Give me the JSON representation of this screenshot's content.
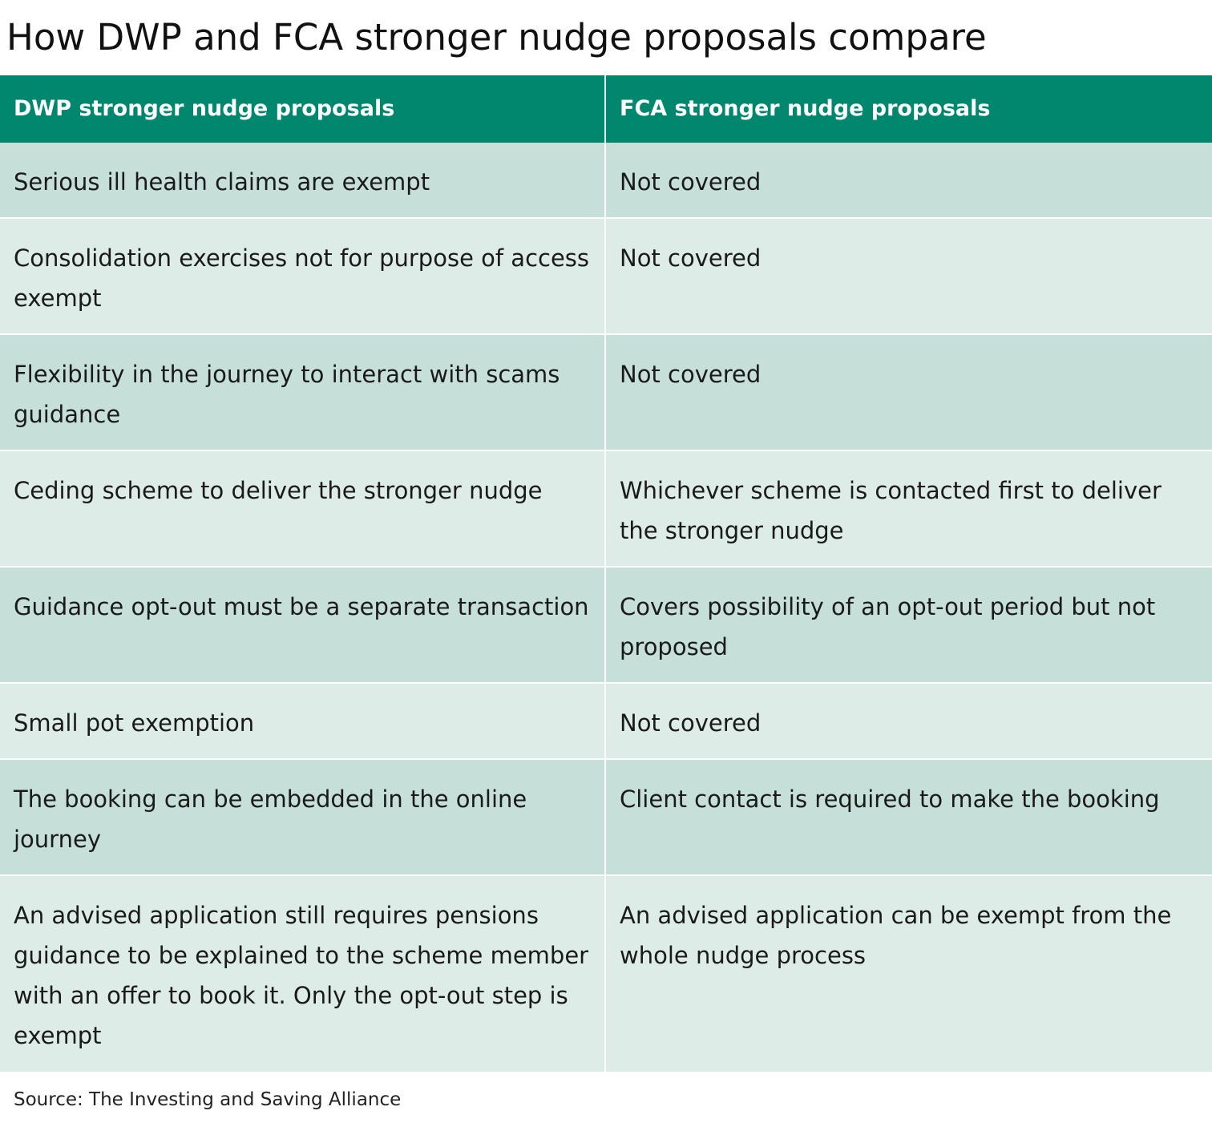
{
  "title": "How DWP and FCA stronger nudge proposals compare",
  "table": {
    "headers": [
      "DWP stronger nudge proposals",
      "FCA stronger nudge proposals"
    ],
    "rows": [
      [
        "Serious ill health claims are exempt",
        "Not covered"
      ],
      [
        "Consolidation exercises not for purpose of access exempt",
        "Not covered"
      ],
      [
        "Flexibility in the journey to interact with scams guidance",
        "Not covered"
      ],
      [
        "Ceding scheme to deliver the stronger nudge",
        "Whichever scheme is contacted first to deliver the stronger nudge"
      ],
      [
        "Guidance opt-out must be a separate transaction",
        "Covers possibility of an opt-out period but not proposed"
      ],
      [
        "Small pot exemption",
        "Not covered"
      ],
      [
        "The booking can be embedded in the online journey",
        "Client contact is required to make the booking"
      ],
      [
        "An advised application still requires pensions guidance to be explained to the scheme member with an offer to book it. Only the opt-out step is exempt",
        "An advised application can be exempt from the whole nudge process"
      ]
    ]
  },
  "source": "Source: The Investing and Saving Alliance",
  "colors": {
    "header_bg": "#00876e",
    "row_dark": "#c6e0d9",
    "row_light": "#deece8"
  }
}
